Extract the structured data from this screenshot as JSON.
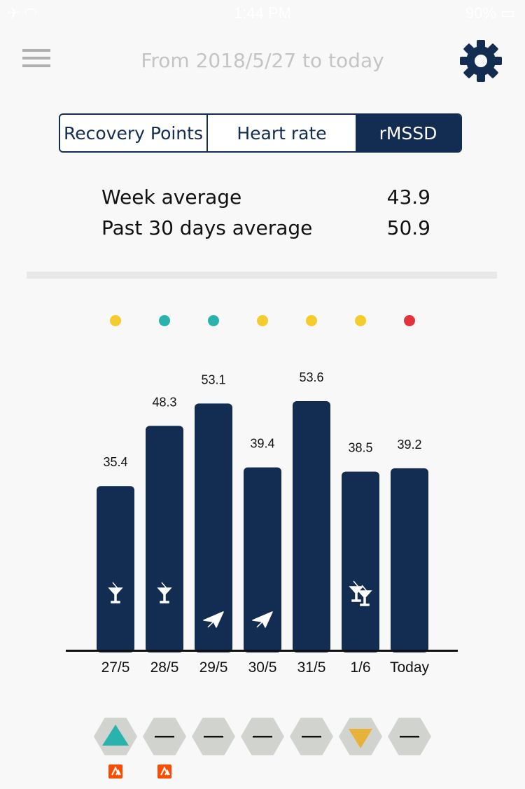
{
  "status_bar": {
    "time": "1:44 PM",
    "battery": "90%"
  },
  "header": {
    "title": "From 2018/5/27 to today"
  },
  "tabs": [
    {
      "label": "Recovery Points",
      "active": false
    },
    {
      "label": "Heart rate",
      "active": false
    },
    {
      "label": "rMSSD",
      "active": true
    }
  ],
  "stats": {
    "week_label": "Week average",
    "week_value": "43.9",
    "month_label": "Past 30 days average",
    "month_value": "50.9"
  },
  "colors": {
    "navy": "#132c52",
    "yellow": "#f4cc2f",
    "teal": "#2ab3ad",
    "red": "#e2333b",
    "hexagon": "#d0d3ce",
    "strava": "#fc4c02"
  },
  "chart_data": {
    "type": "bar",
    "categories": [
      "27/5",
      "28/5",
      "29/5",
      "30/5",
      "31/5",
      "1/6",
      "Today"
    ],
    "values": [
      35.4,
      48.3,
      53.1,
      39.4,
      53.6,
      38.5,
      39.2
    ],
    "value_labels": [
      "35.4",
      "48.3",
      "53.1",
      "39.4",
      "53.6",
      "38.5",
      "39.2"
    ],
    "status_dots": [
      "yellow",
      "teal",
      "teal",
      "yellow",
      "yellow",
      "yellow",
      "red"
    ],
    "bar_icons": [
      "martini",
      "martini",
      "plane",
      "plane",
      "",
      "two-martinis",
      ""
    ],
    "trend": [
      "up",
      "flat",
      "flat",
      "flat",
      "flat",
      "down",
      "flat"
    ],
    "strava_badges": [
      true,
      true,
      false,
      false,
      false,
      false,
      false
    ],
    "ylim": [
      0,
      53.6
    ]
  }
}
